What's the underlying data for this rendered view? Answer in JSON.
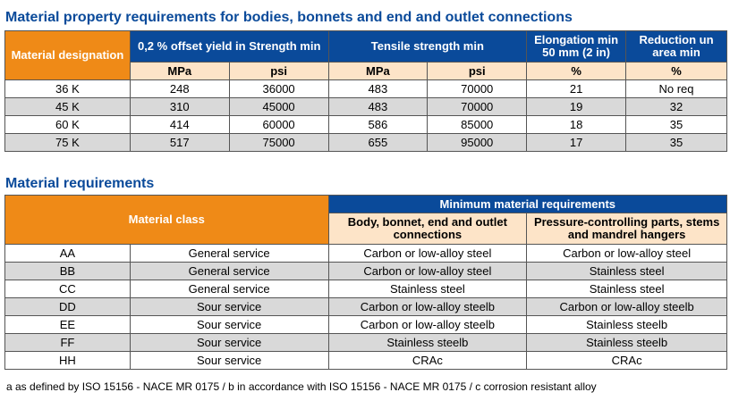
{
  "section1": {
    "title": "Material property requirements for bodies, bonnets and end and outlet connections",
    "headers": {
      "designation": "Material designation",
      "yield": "0,2 % offset yield in Strength min",
      "tensile": "Tensile strength min",
      "elongation": "Elongation min 50 mm (2 in)",
      "reduction": "Reduction un area min"
    },
    "units": {
      "yield_mpa": "MPa",
      "yield_psi": "psi",
      "tensile_mpa": "MPa",
      "tensile_psi": "psi",
      "elongation": "%",
      "reduction": "%"
    },
    "rows": [
      {
        "designation": "36 K",
        "yield_mpa": "248",
        "yield_psi": "36000",
        "tensile_mpa": "483",
        "tensile_psi": "70000",
        "elongation": "21",
        "reduction": "No req"
      },
      {
        "designation": "45 K",
        "yield_mpa": "310",
        "yield_psi": "45000",
        "tensile_mpa": "483",
        "tensile_psi": "70000",
        "elongation": "19",
        "reduction": "32"
      },
      {
        "designation": "60 K",
        "yield_mpa": "414",
        "yield_psi": "60000",
        "tensile_mpa": "586",
        "tensile_psi": "85000",
        "elongation": "18",
        "reduction": "35"
      },
      {
        "designation": "75 K",
        "yield_mpa": "517",
        "yield_psi": "75000",
        "tensile_mpa": "655",
        "tensile_psi": "95000",
        "elongation": "17",
        "reduction": "35"
      }
    ]
  },
  "section2": {
    "title": "Material requirements",
    "headers": {
      "material_class": "Material class",
      "minimum": "Minimum material requirements",
      "body": "Body, bonnet, end and outlet connections",
      "pressure": "Pressure-controlling parts, stems and mandrel hangers"
    },
    "rows": [
      {
        "class": "AA",
        "service": "General service",
        "body": "Carbon or low-alloy steel",
        "pressure": "Carbon or low-alloy steel"
      },
      {
        "class": "BB",
        "service": "General service",
        "body": "Carbon or low-alloy steel",
        "pressure": "Stainless steel"
      },
      {
        "class": "CC",
        "service": "General service",
        "body": "Stainless steel",
        "pressure": "Stainless steel"
      },
      {
        "class": "DD",
        "service": "Sour service",
        "body": "Carbon or low-alloy steelb",
        "pressure": "Carbon or low-alloy steelb"
      },
      {
        "class": "EE",
        "service": "Sour service",
        "body": "Carbon or low-alloy steelb",
        "pressure": "Stainless steelb"
      },
      {
        "class": "FF",
        "service": "Sour service",
        "body": "Stainless steelb",
        "pressure": "Stainless steelb"
      },
      {
        "class": "HH",
        "service": "Sour service",
        "body": "CRAc",
        "pressure": "CRAc"
      }
    ]
  },
  "footnote": "a as defined by ISO 15156 - NACE MR 0175 / b in accordance with ISO 15156 - NACE MR 0175 / c corrosion resistant alloy",
  "colors": {
    "title_blue": "#0a4a9a",
    "header_orange": "#ef8a17",
    "header_blue": "#0a4a9a",
    "unit_peach": "#fde4c8",
    "row_grey": "#d9d9d9"
  }
}
